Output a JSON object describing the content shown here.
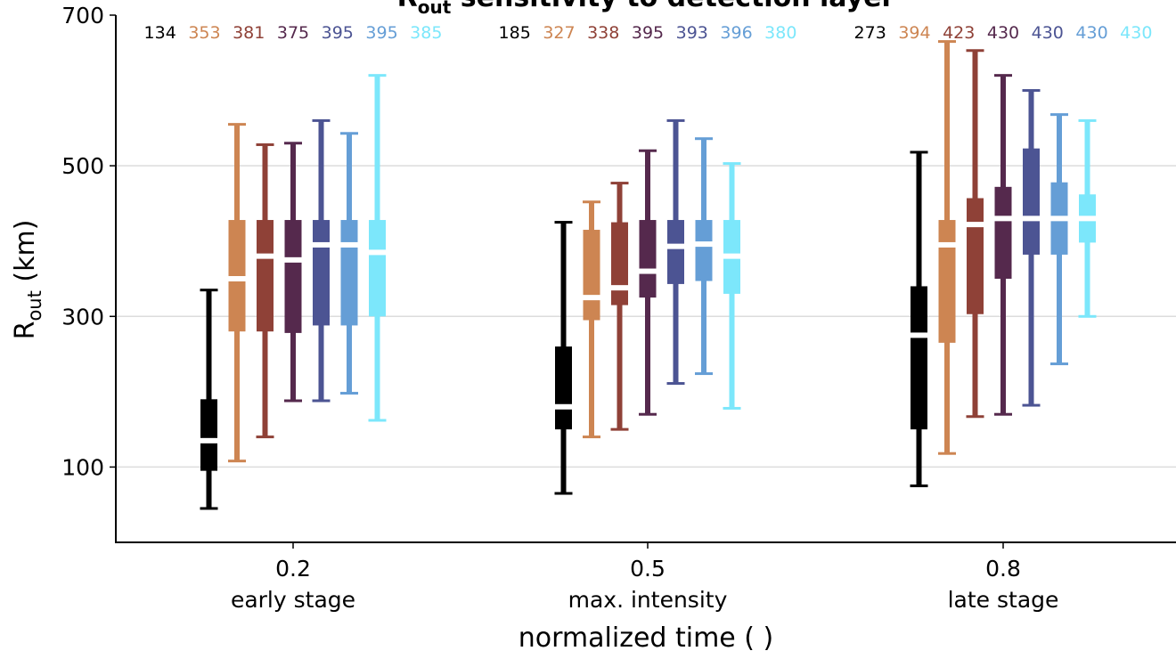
{
  "chart_data": {
    "type": "boxplot",
    "title_main": "R",
    "title_sub": "out",
    "title_rest": " sensitivity to detection layer",
    "ylabel_main": "R",
    "ylabel_sub": "out",
    "ylabel_unit": " (km)",
    "xlabel": "normalized time ( )",
    "ylim": [
      0,
      700
    ],
    "yticks": [
      100,
      300,
      500,
      700
    ],
    "grid": true,
    "categories": [
      {
        "tick": "0.2",
        "label": "early stage"
      },
      {
        "tick": "0.5",
        "label": "max. intensity"
      },
      {
        "tick": "0.8",
        "label": "late stage"
      }
    ],
    "series": [
      {
        "color": "#000000",
        "counts": [
          134,
          185,
          273
        ],
        "boxes": [
          {
            "whislo": 45,
            "q1": 95,
            "med": 135,
            "q3": 190,
            "whishi": 335
          },
          {
            "whislo": 65,
            "q1": 150,
            "med": 180,
            "q3": 260,
            "whishi": 425
          },
          {
            "whislo": 75,
            "q1": 150,
            "med": 275,
            "q3": 340,
            "whishi": 518
          }
        ]
      },
      {
        "color": "#cd8552",
        "counts": [
          353,
          327,
          394
        ],
        "boxes": [
          {
            "whislo": 108,
            "q1": 280,
            "med": 350,
            "q3": 428,
            "whishi": 555
          },
          {
            "whislo": 140,
            "q1": 295,
            "med": 325,
            "q3": 415,
            "whishi": 452
          },
          {
            "whislo": 118,
            "q1": 265,
            "med": 395,
            "q3": 428,
            "whishi": 665
          }
        ]
      },
      {
        "color": "#8f4137",
        "counts": [
          381,
          338,
          423
        ],
        "boxes": [
          {
            "whislo": 140,
            "q1": 280,
            "med": 380,
            "q3": 428,
            "whishi": 528
          },
          {
            "whislo": 150,
            "q1": 315,
            "med": 338,
            "q3": 425,
            "whishi": 477
          },
          {
            "whislo": 167,
            "q1": 303,
            "med": 422,
            "q3": 457,
            "whishi": 653
          }
        ]
      },
      {
        "color": "#55294d",
        "counts": [
          375,
          395,
          430
        ],
        "boxes": [
          {
            "whislo": 188,
            "q1": 278,
            "med": 375,
            "q3": 428,
            "whishi": 530
          },
          {
            "whislo": 170,
            "q1": 325,
            "med": 360,
            "q3": 428,
            "whishi": 520
          },
          {
            "whislo": 170,
            "q1": 350,
            "med": 430,
            "q3": 472,
            "whishi": 620
          }
        ]
      },
      {
        "color": "#4c5493",
        "counts": [
          395,
          393,
          430
        ],
        "boxes": [
          {
            "whislo": 188,
            "q1": 288,
            "med": 395,
            "q3": 428,
            "whishi": 560
          },
          {
            "whislo": 211,
            "q1": 343,
            "med": 393,
            "q3": 428,
            "whishi": 560
          },
          {
            "whislo": 182,
            "q1": 382,
            "med": 430,
            "q3": 523,
            "whishi": 600
          }
        ]
      },
      {
        "color": "#659ed6",
        "counts": [
          395,
          396,
          430
        ],
        "boxes": [
          {
            "whislo": 198,
            "q1": 288,
            "med": 395,
            "q3": 428,
            "whishi": 543
          },
          {
            "whislo": 224,
            "q1": 347,
            "med": 396,
            "q3": 428,
            "whishi": 536
          },
          {
            "whislo": 237,
            "q1": 382,
            "med": 430,
            "q3": 478,
            "whishi": 568
          }
        ]
      },
      {
        "color": "#7ce7fb",
        "counts": [
          385,
          380,
          430
        ],
        "boxes": [
          {
            "whislo": 162,
            "q1": 300,
            "med": 385,
            "q3": 428,
            "whishi": 620
          },
          {
            "whislo": 178,
            "q1": 330,
            "med": 380,
            "q3": 428,
            "whishi": 503
          },
          {
            "whislo": 300,
            "q1": 398,
            "med": 430,
            "q3": 462,
            "whishi": 560
          }
        ]
      }
    ]
  }
}
